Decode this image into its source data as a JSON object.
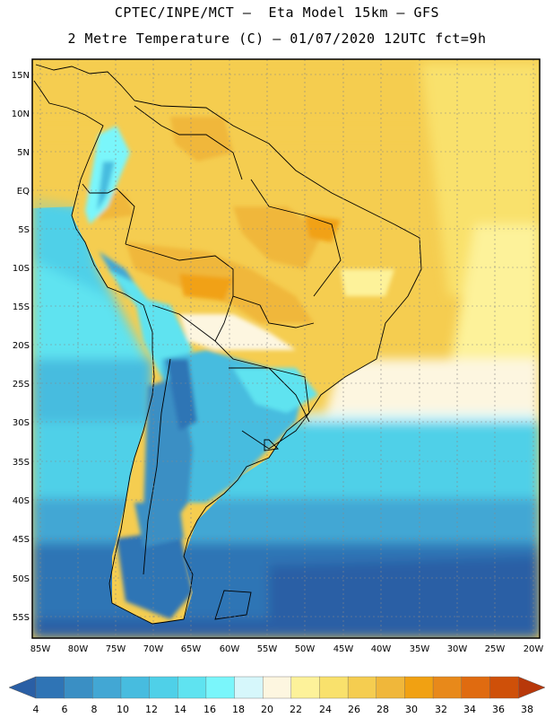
{
  "header": {
    "line1": "CPTEC/INPE/MCT –  Eta Model 15km – GFS",
    "line2": "2 Metre Temperature (C) – 01/07/2020 12UTC fct=9h"
  },
  "map": {
    "region": "South America",
    "lat_labels": [
      "15N",
      "10N",
      "5N",
      "EQ",
      "5S",
      "10S",
      "15S",
      "20S",
      "25S",
      "30S",
      "35S",
      "40S",
      "45S",
      "50S",
      "55S"
    ],
    "lon_labels": [
      "85W",
      "80W",
      "75W",
      "70W",
      "65W",
      "60W",
      "55W",
      "50W",
      "45W",
      "40W",
      "35W",
      "30W",
      "25W",
      "20W"
    ]
  },
  "colorbar": {
    "labels": [
      "4",
      "6",
      "8",
      "10",
      "12",
      "14",
      "16",
      "18",
      "20",
      "22",
      "24",
      "26",
      "28",
      "30",
      "32",
      "34",
      "36",
      "38"
    ],
    "colors": [
      "#2a5fa5",
      "#2f74b5",
      "#3a8fc4",
      "#42a7d4",
      "#47bcdf",
      "#4fd0e8",
      "#5fe3f0",
      "#7af6fb",
      "#d6f7fb",
      "#fdf6e0",
      "#fdf29a",
      "#f9e16c",
      "#f5cd50",
      "#f0b73a",
      "#f1a112",
      "#e8891a",
      "#e06b10",
      "#cf5009",
      "#b8380a"
    ],
    "low_arrow_color": "#2a5fa5",
    "high_arrow_color": "#b8380a"
  }
}
